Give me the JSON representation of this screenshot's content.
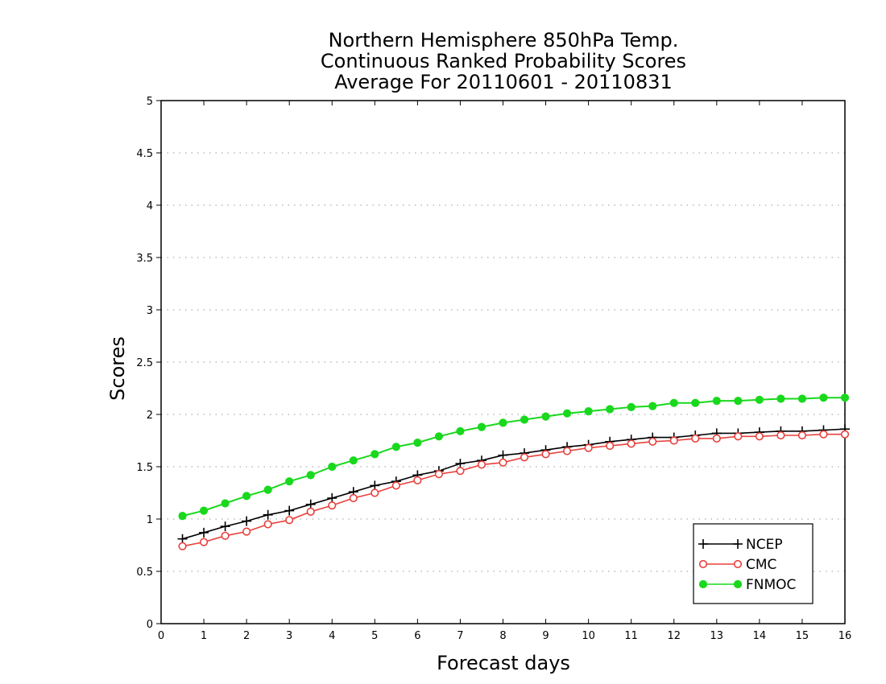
{
  "chart_data": {
    "type": "line",
    "title": [
      "Northern Hemisphere 850hPa Temp.",
      "Continuous Ranked Probability Scores",
      "Average For 20110601 - 20110831"
    ],
    "xlabel": "Forecast days",
    "ylabel": "Scores",
    "xlim": [
      0,
      16
    ],
    "ylim": [
      0,
      5
    ],
    "x_ticks": [
      0,
      1,
      2,
      3,
      4,
      5,
      6,
      7,
      8,
      9,
      10,
      11,
      12,
      13,
      14,
      15,
      16
    ],
    "y_ticks": [
      "0",
      "0.5",
      "1",
      "1.5",
      "2",
      "2.5",
      "3",
      "3.5",
      "4",
      "4.5",
      "5"
    ],
    "grid": true,
    "legend_position": "bottom-right",
    "x": [
      0.5,
      1,
      1.5,
      2,
      2.5,
      3,
      3.5,
      4,
      4.5,
      5,
      5.5,
      6,
      6.5,
      7,
      7.5,
      8,
      8.5,
      9,
      9.5,
      10,
      10.5,
      11,
      11.5,
      12,
      12.5,
      13,
      13.5,
      14,
      14.5,
      15,
      15.5,
      16
    ],
    "series": [
      {
        "name": "NCEP",
        "color": "#000000",
        "marker": "plus",
        "values": [
          0.81,
          0.87,
          0.93,
          0.98,
          1.04,
          1.08,
          1.14,
          1.2,
          1.26,
          1.32,
          1.36,
          1.42,
          1.46,
          1.53,
          1.56,
          1.61,
          1.63,
          1.66,
          1.69,
          1.71,
          1.74,
          1.76,
          1.78,
          1.78,
          1.8,
          1.82,
          1.82,
          1.83,
          1.84,
          1.84,
          1.85,
          1.86
        ]
      },
      {
        "name": "CMC",
        "color": "#e8403c",
        "marker": "open-circle",
        "values": [
          0.74,
          0.78,
          0.84,
          0.88,
          0.95,
          0.99,
          1.07,
          1.13,
          1.2,
          1.25,
          1.32,
          1.37,
          1.43,
          1.46,
          1.52,
          1.54,
          1.59,
          1.62,
          1.65,
          1.68,
          1.7,
          1.72,
          1.74,
          1.75,
          1.77,
          1.77,
          1.79,
          1.79,
          1.8,
          1.8,
          1.81,
          1.81
        ]
      },
      {
        "name": "FNMOC",
        "color": "#19d81d",
        "marker": "filled-circle",
        "values": [
          1.03,
          1.08,
          1.15,
          1.22,
          1.28,
          1.36,
          1.42,
          1.5,
          1.56,
          1.62,
          1.69,
          1.73,
          1.79,
          1.84,
          1.88,
          1.92,
          1.95,
          1.98,
          2.01,
          2.03,
          2.05,
          2.07,
          2.08,
          2.11,
          2.11,
          2.13,
          2.13,
          2.14,
          2.15,
          2.15,
          2.16,
          2.16
        ]
      }
    ]
  }
}
